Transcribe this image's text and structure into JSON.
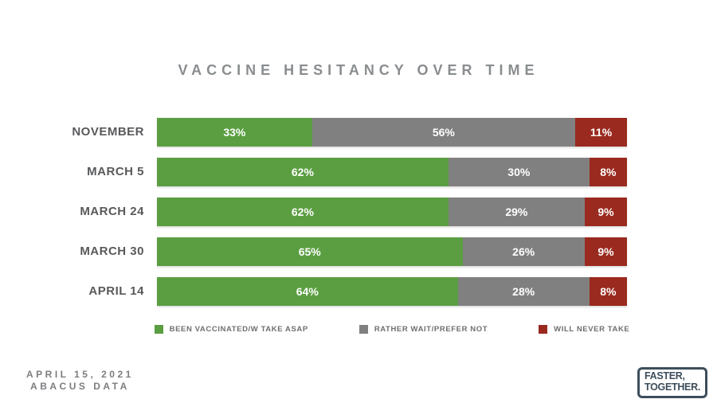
{
  "title": "VACCINE HESITANCY OVER TIME",
  "chart_data": {
    "type": "bar",
    "stacked": true,
    "orientation": "horizontal",
    "title": "VACCINE HESITANCY OVER TIME",
    "categories": [
      "NOVEMBER",
      "MARCH 5",
      "MARCH 24",
      "MARCH 30",
      "APRIL 14"
    ],
    "series": [
      {
        "name": "BEEN VACCINATED/W TAKE ASAP",
        "color": "#5a9e41",
        "values": [
          33,
          62,
          62,
          65,
          64
        ]
      },
      {
        "name": "RATHER WAIT/PREFER NOT",
        "color": "#808080",
        "values": [
          56,
          30,
          29,
          26,
          28
        ]
      },
      {
        "name": "WILL NEVER TAKE",
        "color": "#9a2a1f",
        "values": [
          11,
          8,
          9,
          9,
          8
        ]
      }
    ],
    "value_suffix": "%",
    "xlim": [
      0,
      100
    ],
    "grid": false,
    "legend_position": "bottom"
  },
  "footer": {
    "date_line": "APRIL 15, 2021",
    "source_line": "ABACUS DATA"
  },
  "logo": {
    "line1": "FASTER,",
    "line2": "TOGETHER."
  },
  "colors": {
    "background": "#ffffff",
    "title_text": "#8a8d8f",
    "category_label": "#58595b",
    "value_label": "#ffffff",
    "legend_text": "#6d6e71",
    "footer_text": "#7c7d80",
    "logo": "#3d4e5b"
  }
}
